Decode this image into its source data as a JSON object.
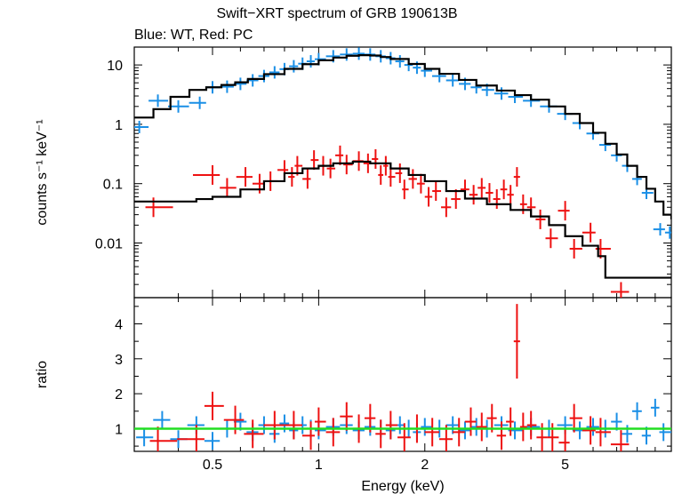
{
  "title": "Swift−XRT spectrum of GRB 190613B",
  "subtitle": "Blue: WT, Red: PC",
  "colors": {
    "wt": "#1a8fe6",
    "pc": "#ee1111",
    "model": "#000000",
    "ratio_line": "#22dd22"
  },
  "chart_data": [
    {
      "type": "scatter",
      "panel": "spectrum",
      "xlabel": "",
      "ylabel": "counts s⁻¹ keV⁻¹",
      "xscale": "log",
      "yscale": "log",
      "xlim": [
        0.3,
        10
      ],
      "ylim": [
        0.0012,
        20
      ],
      "yticks": [
        0.01,
        0.1,
        1,
        10
      ],
      "ytick_labels": [
        "0.01",
        "0.1",
        "1",
        "10"
      ],
      "series": [
        {
          "name": "WT",
          "color": "#1a8fe6",
          "points": [
            [
              0.31,
              0.9
            ],
            [
              0.35,
              2.5
            ],
            [
              0.4,
              2.0
            ],
            [
              0.46,
              2.3
            ],
            [
              0.5,
              4.2
            ],
            [
              0.55,
              4.3
            ],
            [
              0.6,
              4.8
            ],
            [
              0.65,
              5.5
            ],
            [
              0.7,
              6.5
            ],
            [
              0.75,
              7.5
            ],
            [
              0.8,
              8.5
            ],
            [
              0.85,
              9.5
            ],
            [
              0.9,
              10.5
            ],
            [
              0.95,
              11.5
            ],
            [
              1.0,
              12.5
            ],
            [
              1.1,
              14.0
            ],
            [
              1.2,
              15.0
            ],
            [
              1.3,
              15.5
            ],
            [
              1.4,
              15.0
            ],
            [
              1.5,
              14.0
            ],
            [
              1.6,
              13.0
            ],
            [
              1.7,
              11.5
            ],
            [
              1.8,
              10.0
            ],
            [
              1.9,
              9.0
            ],
            [
              2.0,
              8.0
            ],
            [
              2.2,
              6.5
            ],
            [
              2.4,
              5.5
            ],
            [
              2.6,
              4.8
            ],
            [
              2.8,
              4.2
            ],
            [
              3.0,
              3.8
            ],
            [
              3.3,
              3.3
            ],
            [
              3.6,
              2.9
            ],
            [
              4.0,
              2.5
            ],
            [
              4.5,
              2.0
            ],
            [
              5.0,
              1.5
            ],
            [
              5.5,
              1.05
            ],
            [
              6.0,
              0.7
            ],
            [
              6.5,
              0.45
            ],
            [
              7.0,
              0.3
            ],
            [
              7.5,
              0.2
            ],
            [
              8.0,
              0.12
            ],
            [
              8.5,
              0.07
            ],
            [
              9.3,
              0.017
            ],
            [
              9.9,
              0.015
            ]
          ]
        },
        {
          "name": "PC",
          "color": "#ee1111",
          "points": [
            [
              0.34,
              0.04
            ],
            [
              0.5,
              0.14
            ],
            [
              0.55,
              0.085
            ],
            [
              0.62,
              0.13
            ],
            [
              0.68,
              0.1
            ],
            [
              0.73,
              0.11
            ],
            [
              0.8,
              0.17
            ],
            [
              0.84,
              0.13
            ],
            [
              0.87,
              0.2
            ],
            [
              0.93,
              0.12
            ],
            [
              0.97,
              0.25
            ],
            [
              1.03,
              0.2
            ],
            [
              1.08,
              0.18
            ],
            [
              1.15,
              0.3
            ],
            [
              1.2,
              0.21
            ],
            [
              1.3,
              0.24
            ],
            [
              1.38,
              0.22
            ],
            [
              1.45,
              0.26
            ],
            [
              1.5,
              0.14
            ],
            [
              1.55,
              0.2
            ],
            [
              1.6,
              0.13
            ],
            [
              1.7,
              0.15
            ],
            [
              1.75,
              0.08
            ],
            [
              1.85,
              0.12
            ],
            [
              1.95,
              0.1
            ],
            [
              2.05,
              0.06
            ],
            [
              2.15,
              0.075
            ],
            [
              2.3,
              0.04
            ],
            [
              2.45,
              0.055
            ],
            [
              2.6,
              0.08
            ],
            [
              2.75,
              0.065
            ],
            [
              2.9,
              0.085
            ],
            [
              3.05,
              0.07
            ],
            [
              3.2,
              0.055
            ],
            [
              3.35,
              0.08
            ],
            [
              3.5,
              0.065
            ],
            [
              3.65,
              0.13
            ],
            [
              3.8,
              0.045
            ],
            [
              4.0,
              0.04
            ],
            [
              4.25,
              0.025
            ],
            [
              4.55,
              0.012
            ],
            [
              5.0,
              0.035
            ],
            [
              5.3,
              0.008
            ],
            [
              5.9,
              0.015
            ],
            [
              6.3,
              0.008
            ],
            [
              7.2,
              0.0015
            ]
          ]
        }
      ],
      "model_wt": [
        [
          0.3,
          1.3
        ],
        [
          0.34,
          1.8
        ],
        [
          0.38,
          2.9
        ],
        [
          0.43,
          3.8
        ],
        [
          0.48,
          4.2
        ],
        [
          0.53,
          4.6
        ],
        [
          0.58,
          5.1
        ],
        [
          0.63,
          5.8
        ],
        [
          0.7,
          7.0
        ],
        [
          0.8,
          8.6
        ],
        [
          0.9,
          10.3
        ],
        [
          1.0,
          12.0
        ],
        [
          1.1,
          13.3
        ],
        [
          1.2,
          14.3
        ],
        [
          1.3,
          14.6
        ],
        [
          1.4,
          14.4
        ],
        [
          1.5,
          13.6
        ],
        [
          1.6,
          12.6
        ],
        [
          1.8,
          10.4
        ],
        [
          2.0,
          8.6
        ],
        [
          2.2,
          7.1
        ],
        [
          2.5,
          5.6
        ],
        [
          2.8,
          4.5
        ],
        [
          3.2,
          3.7
        ],
        [
          3.6,
          3.1
        ],
        [
          4.0,
          2.6
        ],
        [
          4.5,
          2.0
        ],
        [
          5.0,
          1.5
        ],
        [
          5.5,
          1.05
        ],
        [
          6.0,
          0.72
        ],
        [
          6.5,
          0.47
        ],
        [
          7.0,
          0.31
        ],
        [
          7.5,
          0.2
        ],
        [
          8.0,
          0.13
        ],
        [
          8.5,
          0.082
        ],
        [
          9.0,
          0.05
        ],
        [
          9.5,
          0.03
        ],
        [
          10.0,
          0.025
        ]
      ],
      "model_pc": [
        [
          0.3,
          0.05
        ],
        [
          0.45,
          0.055
        ],
        [
          0.5,
          0.06
        ],
        [
          0.6,
          0.08
        ],
        [
          0.7,
          0.11
        ],
        [
          0.8,
          0.15
        ],
        [
          0.9,
          0.18
        ],
        [
          1.0,
          0.2
        ],
        [
          1.1,
          0.22
        ],
        [
          1.25,
          0.235
        ],
        [
          1.4,
          0.22
        ],
        [
          1.6,
          0.18
        ],
        [
          1.8,
          0.14
        ],
        [
          2.0,
          0.11
        ],
        [
          2.3,
          0.075
        ],
        [
          2.6,
          0.056
        ],
        [
          3.0,
          0.045
        ],
        [
          3.5,
          0.036
        ],
        [
          4.0,
          0.028
        ],
        [
          4.5,
          0.02
        ],
        [
          5.0,
          0.013
        ],
        [
          5.6,
          0.009
        ],
        [
          6.2,
          0.006
        ],
        [
          6.5,
          0.0026
        ],
        [
          7.8,
          0.0026
        ],
        [
          8.7,
          0.0026
        ]
      ]
    },
    {
      "type": "scatter",
      "panel": "ratio",
      "xlabel": "Energy (keV)",
      "ylabel": "ratio",
      "xscale": "log",
      "yscale": "linear",
      "xlim": [
        0.3,
        10
      ],
      "ylim": [
        0.35,
        4.75
      ],
      "xticks": [
        0.5,
        1,
        2,
        5
      ],
      "xtick_labels": [
        "0.5",
        "1",
        "2",
        "5"
      ],
      "yticks": [
        1,
        2,
        3,
        4
      ],
      "ytick_labels": [
        "1",
        "2",
        "3",
        "4"
      ],
      "reference_line": 1,
      "series": [
        {
          "name": "WT",
          "color": "#1a8fe6",
          "points": [
            [
              0.32,
              0.75
            ],
            [
              0.36,
              1.25
            ],
            [
              0.4,
              0.7
            ],
            [
              0.45,
              1.1
            ],
            [
              0.5,
              0.65
            ],
            [
              0.55,
              1.0
            ],
            [
              0.6,
              1.2
            ],
            [
              0.65,
              0.9
            ],
            [
              0.7,
              1.1
            ],
            [
              0.75,
              0.85
            ],
            [
              0.8,
              1.15
            ],
            [
              0.85,
              0.95
            ],
            [
              0.9,
              1.1
            ],
            [
              0.95,
              1.0
            ],
            [
              1.0,
              0.95
            ],
            [
              1.1,
              1.05
            ],
            [
              1.2,
              1.1
            ],
            [
              1.3,
              0.95
            ],
            [
              1.4,
              1.05
            ],
            [
              1.5,
              1.0
            ],
            [
              1.6,
              0.95
            ],
            [
              1.7,
              1.1
            ],
            [
              1.8,
              1.0
            ],
            [
              1.9,
              0.9
            ],
            [
              2.0,
              1.05
            ],
            [
              2.2,
              1.0
            ],
            [
              2.4,
              1.1
            ],
            [
              2.6,
              0.95
            ],
            [
              2.8,
              1.05
            ],
            [
              3.0,
              1.0
            ],
            [
              3.3,
              1.1
            ],
            [
              3.6,
              0.95
            ],
            [
              4.0,
              1.05
            ],
            [
              4.5,
              1.0
            ],
            [
              5.0,
              1.1
            ],
            [
              5.5,
              0.95
            ],
            [
              6.0,
              1.05
            ],
            [
              6.5,
              1.0
            ],
            [
              7.0,
              1.2
            ],
            [
              7.5,
              0.85
            ],
            [
              8.0,
              1.5
            ],
            [
              8.5,
              0.8
            ],
            [
              9.0,
              1.6
            ],
            [
              9.5,
              0.9
            ]
          ]
        },
        {
          "name": "PC",
          "color": "#ee1111",
          "points": [
            [
              0.35,
              0.65
            ],
            [
              0.45,
              0.7
            ],
            [
              0.5,
              1.65
            ],
            [
              0.58,
              1.25
            ],
            [
              0.65,
              0.85
            ],
            [
              0.75,
              1.1
            ],
            [
              0.85,
              1.1
            ],
            [
              0.95,
              0.8
            ],
            [
              1.0,
              1.2
            ],
            [
              1.1,
              0.9
            ],
            [
              1.2,
              1.35
            ],
            [
              1.3,
              1.0
            ],
            [
              1.4,
              1.3
            ],
            [
              1.5,
              0.85
            ],
            [
              1.6,
              1.1
            ],
            [
              1.75,
              0.75
            ],
            [
              1.9,
              1.0
            ],
            [
              2.1,
              0.9
            ],
            [
              2.3,
              0.7
            ],
            [
              2.5,
              0.9
            ],
            [
              2.7,
              1.2
            ],
            [
              2.9,
              1.05
            ],
            [
              3.1,
              1.3
            ],
            [
              3.3,
              0.8
            ],
            [
              3.5,
              1.2
            ],
            [
              3.65,
              3.5
            ],
            [
              3.8,
              1.05
            ],
            [
              4.0,
              1.1
            ],
            [
              4.3,
              0.75
            ],
            [
              4.6,
              0.75
            ],
            [
              5.0,
              0.6
            ],
            [
              5.3,
              1.3
            ],
            [
              5.9,
              0.95
            ],
            [
              6.3,
              0.9
            ],
            [
              7.2,
              0.55
            ]
          ]
        }
      ]
    }
  ]
}
